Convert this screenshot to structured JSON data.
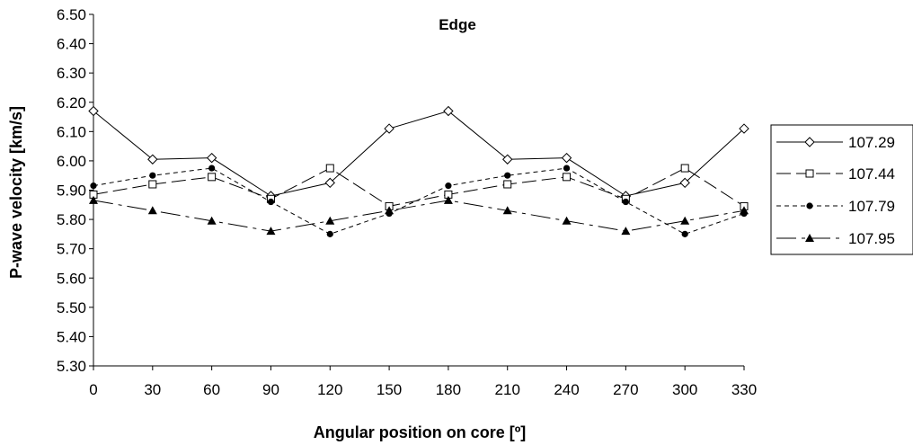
{
  "chart_data": {
    "type": "line",
    "title": "Edge",
    "xlabel": "Angular position on core [º]",
    "ylabel": "P-wave velocity [km/s]",
    "x": [
      0,
      30,
      60,
      90,
      120,
      150,
      180,
      210,
      240,
      270,
      300,
      330
    ],
    "x_tick_labels": [
      "0",
      "30",
      "60",
      "90",
      "120",
      "150",
      "180",
      "210",
      "240",
      "270",
      "300",
      "330"
    ],
    "ylim": [
      5.3,
      6.5
    ],
    "y_ticks": [
      "5.30",
      "5.40",
      "5.50",
      "5.60",
      "5.70",
      "5.80",
      "5.90",
      "6.00",
      "6.10",
      "6.20",
      "6.30",
      "6.40",
      "6.50"
    ],
    "grid": false,
    "legend_position": "right",
    "series": [
      {
        "name": "107.29",
        "marker": "diamond-open",
        "line_style": "solid",
        "color": "#000000",
        "values": [
          6.17,
          6.005,
          6.01,
          5.88,
          5.925,
          6.11,
          6.17,
          6.005,
          6.01,
          5.88,
          5.925,
          6.11
        ]
      },
      {
        "name": "107.44",
        "marker": "square-open",
        "line_style": "long-dash",
        "color": "#000000",
        "values": [
          5.885,
          5.92,
          5.945,
          5.87,
          5.975,
          5.845,
          5.885,
          5.92,
          5.945,
          5.87,
          5.975,
          5.845
        ]
      },
      {
        "name": "107.79",
        "marker": "circle-filled",
        "line_style": "short-dash",
        "color": "#000000",
        "values": [
          5.915,
          5.95,
          5.975,
          5.86,
          5.75,
          5.82,
          5.915,
          5.95,
          5.975,
          5.86,
          5.75,
          5.82
        ]
      },
      {
        "name": "107.95",
        "marker": "triangle-filled",
        "line_style": "dash-dot",
        "color": "#000000",
        "values": [
          5.865,
          5.83,
          5.795,
          5.76,
          5.795,
          5.83,
          5.865,
          5.83,
          5.795,
          5.76,
          5.795,
          5.83
        ]
      }
    ]
  }
}
